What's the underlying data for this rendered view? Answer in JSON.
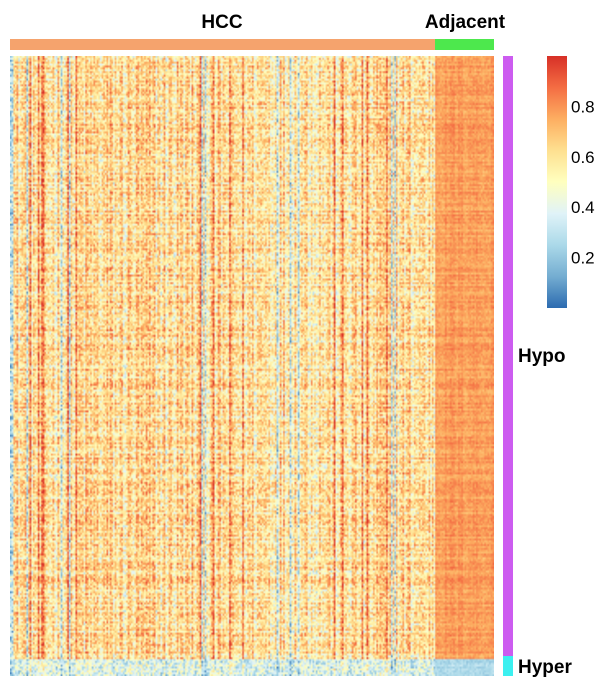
{
  "chart_data": {
    "type": "heatmap",
    "title": "",
    "xlabel": "",
    "ylabel": "",
    "column_groups": [
      {
        "label": "HCC",
        "color": "#F5A36D",
        "n_columns": 260
      },
      {
        "label": "Adjacent",
        "color": "#4DE84D",
        "n_columns": 36
      }
    ],
    "row_groups": [
      {
        "label": "Hypo",
        "color": "#CC5CF0",
        "n_rows": 320
      },
      {
        "label": "Hyper",
        "color": "#3CF0F0",
        "n_rows": 9
      }
    ],
    "value_range": [
      0,
      1
    ],
    "colorbar": {
      "ticks": [
        0.2,
        0.4,
        0.6,
        0.8
      ],
      "tick_labels": [
        "0.2",
        "0.4",
        "0.6",
        "0.8"
      ],
      "colors": [
        "#2C6BB0",
        "#74ADD1",
        "#ABD9E9",
        "#E0F3F8",
        "#FFFFBF",
        "#FEE090",
        "#FDAE61",
        "#F46D43",
        "#D73027"
      ]
    },
    "approximate_mean_values": {
      "HCC_Hypo": 0.6,
      "HCC_Hyper": 0.35,
      "Adjacent_Hypo": 0.78,
      "Adjacent_Hyper": 0.25
    }
  }
}
